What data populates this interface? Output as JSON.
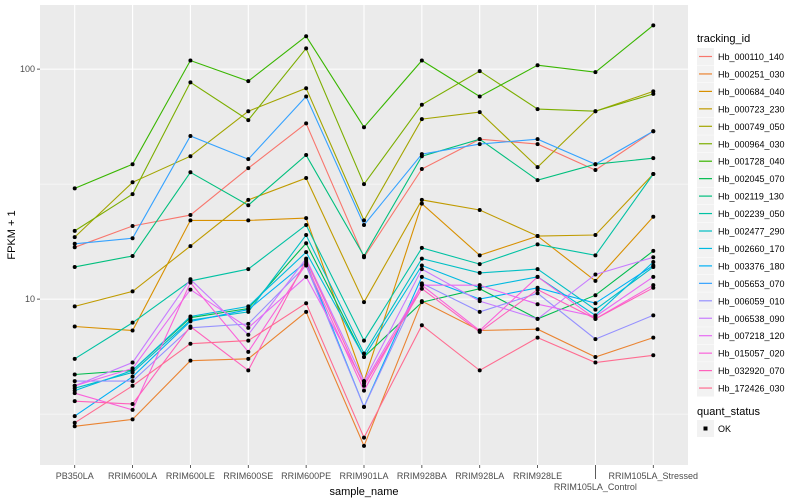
{
  "chart_data": {
    "type": "line",
    "xlabel": "sample_name",
    "ylabel": "FPKM + 1",
    "y_scale": "log10",
    "ylim": [
      1.9,
      190
    ],
    "y_ticks": [
      10,
      100
    ],
    "grid": true,
    "legend_position": "right",
    "categories": [
      "PB350LA",
      "RRIM600LA",
      "RRIM600LE",
      "RRIM600SE",
      "RRIM600PE",
      "RRIM901LA",
      "RRIM928BA",
      "RRIM928LA",
      "RRIM928LE",
      "RRIM105LA_Control",
      "RRIM105LA_Stressed"
    ],
    "legend_title": "tracking_id",
    "series": [
      {
        "name": "Hb_000110_140",
        "color": "#F8766D",
        "values": [
          16.8,
          20.8,
          23.2,
          37.1,
          58.1,
          15.2,
          36.8,
          49.6,
          47.2,
          36.4,
          53.7
        ]
      },
      {
        "name": "Hb_000251_030",
        "color": "#EA8331",
        "values": [
          2.8,
          3.0,
          5.4,
          5.5,
          8.8,
          2.3,
          9.8,
          7.3,
          7.4,
          5.6,
          6.8
        ]
      },
      {
        "name": "Hb_000684_040",
        "color": "#D89000",
        "values": [
          7.6,
          7.3,
          22,
          22,
          22.5,
          4.4,
          26,
          15.5,
          18.8,
          12,
          22.8
        ]
      },
      {
        "name": "Hb_000723_230",
        "color": "#C09B00",
        "values": [
          9.3,
          10.8,
          17,
          27,
          33.6,
          9.7,
          27,
          24.4,
          18.8,
          19,
          35
        ]
      },
      {
        "name": "Hb_000749_050",
        "color": "#A3A500",
        "values": [
          18.6,
          32.2,
          41.8,
          65.6,
          82.6,
          22,
          60.6,
          65,
          37.5,
          65.6,
          80
        ]
      },
      {
        "name": "Hb_000964_030",
        "color": "#7CAE00",
        "values": [
          19.8,
          28.6,
          87.6,
          60,
          123,
          31.6,
          70,
          98,
          67,
          65.6,
          78
        ]
      },
      {
        "name": "Hb_001728_040",
        "color": "#39B600",
        "values": [
          30.3,
          38.6,
          109,
          88.7,
          139,
          55.9,
          109,
          76,
          104,
          97,
          155
        ]
      },
      {
        "name": "Hb_002045_070",
        "color": "#00BB4E",
        "values": [
          4.7,
          4.9,
          8.3,
          9.1,
          17.5,
          5.6,
          9.7,
          11.1,
          8.2,
          10.4,
          16.2
        ]
      },
      {
        "name": "Hb_002119_130",
        "color": "#00BF7D",
        "values": [
          13.8,
          15.4,
          35.6,
          25.6,
          42.3,
          15.4,
          41.8,
          49.6,
          32.9,
          38.6,
          41
        ]
      },
      {
        "name": "Hb_002239_050",
        "color": "#00C1A3",
        "values": [
          5.5,
          7.9,
          12,
          13.5,
          21,
          6.6,
          16.7,
          14.2,
          17.3,
          15.5,
          35
        ]
      },
      {
        "name": "Hb_002477_290",
        "color": "#00BFC4",
        "values": [
          4.1,
          4.8,
          8.1,
          8.8,
          19,
          5.8,
          15,
          13.0,
          13.5,
          9.0,
          13.8
        ]
      },
      {
        "name": "Hb_002660_170",
        "color": "#00BAE0",
        "values": [
          4.0,
          4.9,
          8.4,
          9.3,
          16,
          5.6,
          14,
          11.2,
          12.5,
          8.5,
          14.5
        ]
      },
      {
        "name": "Hb_003376_180",
        "color": "#00B0F6",
        "values": [
          3.1,
          4.6,
          8.0,
          9.0,
          14.5,
          3.4,
          12.5,
          10,
          11.2,
          9.6,
          14
        ]
      },
      {
        "name": "Hb_005653_070",
        "color": "#35A2FF",
        "values": [
          17.4,
          18.4,
          51.2,
          40.6,
          76,
          21,
          42.7,
          47.2,
          49.6,
          38.6,
          53.7
        ]
      },
      {
        "name": "Hb_006059_010",
        "color": "#9590FF",
        "values": [
          4.4,
          4.4,
          7.5,
          7.8,
          14,
          3.4,
          11.7,
          8.8,
          10.6,
          6.7,
          8.5
        ]
      },
      {
        "name": "Hb_006538_090",
        "color": "#C77CFF",
        "values": [
          4.2,
          5.3,
          12.2,
          7.0,
          15,
          4.4,
          13.5,
          9.8,
          8.2,
          12.8,
          15.2
        ]
      },
      {
        "name": "Hb_007218_120",
        "color": "#E76BF3",
        "values": [
          4.2,
          5.0,
          11,
          7.5,
          12.5,
          4.3,
          11.5,
          11.5,
          9.5,
          8.4,
          12.5
        ]
      },
      {
        "name": "Hb_015057_020",
        "color": "#FA62DB",
        "values": [
          3.9,
          3.3,
          11.8,
          5.9,
          14.2,
          4.0,
          11.5,
          7.3,
          12.5,
          8.2,
          11.5
        ]
      },
      {
        "name": "Hb_032920_070",
        "color": "#FF62BC",
        "values": [
          3.6,
          3.5,
          7.6,
          4.9,
          14.8,
          4.2,
          11.1,
          7.2,
          11.0,
          8.2,
          11.2
        ]
      },
      {
        "name": "Hb_172426_030",
        "color": "#FF6C91",
        "values": [
          2.9,
          4.2,
          6.4,
          6.6,
          9.6,
          2.5,
          7.7,
          4.9,
          6.8,
          5.3,
          5.7
        ]
      }
    ],
    "point_legend": {
      "title": "quant_status",
      "items": [
        "OK"
      ],
      "point_color": "#000000"
    }
  }
}
